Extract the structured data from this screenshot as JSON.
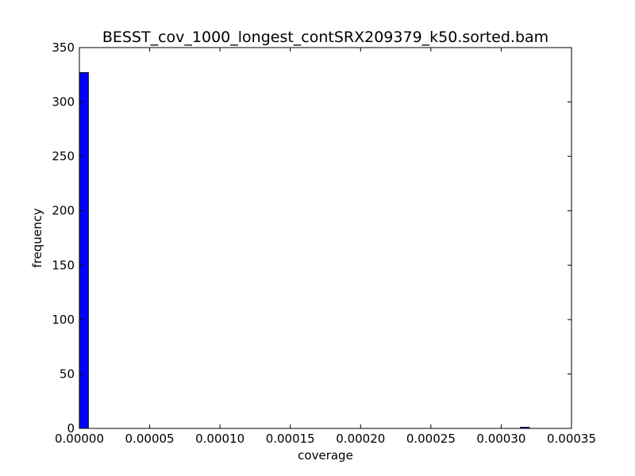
{
  "chart_data": {
    "type": "bar",
    "title": "BESST_cov_1000_longest_contSRX209379_k50.sorted.bam",
    "xlabel": "coverage",
    "ylabel": "frequency",
    "xlim": [
      0,
      0.00035
    ],
    "ylim": [
      0,
      350
    ],
    "x_ticks": [
      "0.00000",
      "0.00005",
      "0.00010",
      "0.00015",
      "0.00020",
      "0.00025",
      "0.00030",
      "0.00035"
    ],
    "x_tick_values": [
      0,
      5e-05,
      0.0001,
      0.00015,
      0.0002,
      0.00025,
      0.0003,
      0.00035
    ],
    "y_ticks": [
      "0",
      "50",
      "100",
      "150",
      "200",
      "250",
      "300",
      "350"
    ],
    "y_tick_values": [
      0,
      50,
      100,
      150,
      200,
      250,
      300,
      350
    ],
    "bin_width": 6.4e-06,
    "bins": [
      {
        "x": 0,
        "value": 327
      },
      {
        "x": 0.0003136,
        "value": 1
      }
    ],
    "bar_color": "#0000ff",
    "grid": false,
    "legend": "none"
  }
}
